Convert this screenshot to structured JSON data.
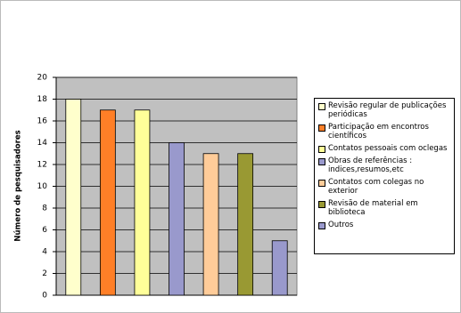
{
  "chart_data": {
    "type": "bar",
    "y_label": "Número de pesquisadores",
    "categories": [
      "Revisão regular de publicações periódicas",
      "Participação em encontros científicos",
      "Contatos pessoais com oclegas",
      "Obras de referências : indices,resumos,etc",
      "Contatos com colegas no exterior",
      "Revisão de material em biblioteca",
      "Outros"
    ],
    "values": [
      18,
      17,
      17,
      14,
      13,
      13,
      5
    ],
    "colors": [
      "#ffffcc",
      "#ff7f27",
      "#ffff99",
      "#9999cc",
      "#ffcc99",
      "#999933",
      "#9999cc"
    ],
    "ylim": [
      0,
      20
    ],
    "yticks": [
      0,
      2,
      4,
      6,
      8,
      10,
      12,
      14,
      16,
      18,
      20
    ],
    "grid": true
  }
}
